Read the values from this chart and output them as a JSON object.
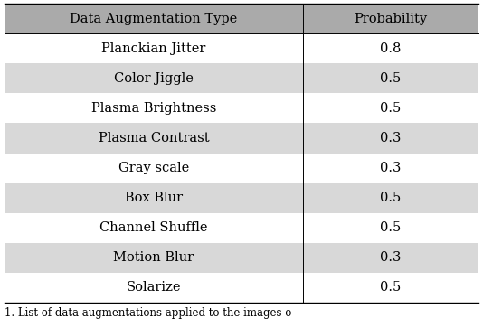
{
  "col_headers": [
    "Data Augmentation Type",
    "Probability"
  ],
  "rows": [
    [
      "Planckian Jitter",
      "0.8"
    ],
    [
      "Color Jiggle",
      "0.5"
    ],
    [
      "Plasma Brightness",
      "0.5"
    ],
    [
      "Plasma Contrast",
      "0.3"
    ],
    [
      "Gray scale",
      "0.3"
    ],
    [
      "Box Blur",
      "0.5"
    ],
    [
      "Channel Shuffle",
      "0.5"
    ],
    [
      "Motion Blur",
      "0.3"
    ],
    [
      "Solarize",
      "0.5"
    ]
  ],
  "header_bg": "#aaaaaa",
  "row_bg_even": "#ffffff",
  "row_bg_odd": "#d8d8d8",
  "header_text_color": "#000000",
  "row_text_color": "#000000",
  "caption": "1. List of data augmentations applied to the images o",
  "caption_fontsize": 8.5,
  "header_fontsize": 10.5,
  "cell_fontsize": 10.5,
  "col_split": 0.63,
  "fig_width": 5.34,
  "fig_height": 3.62,
  "dpi": 100
}
